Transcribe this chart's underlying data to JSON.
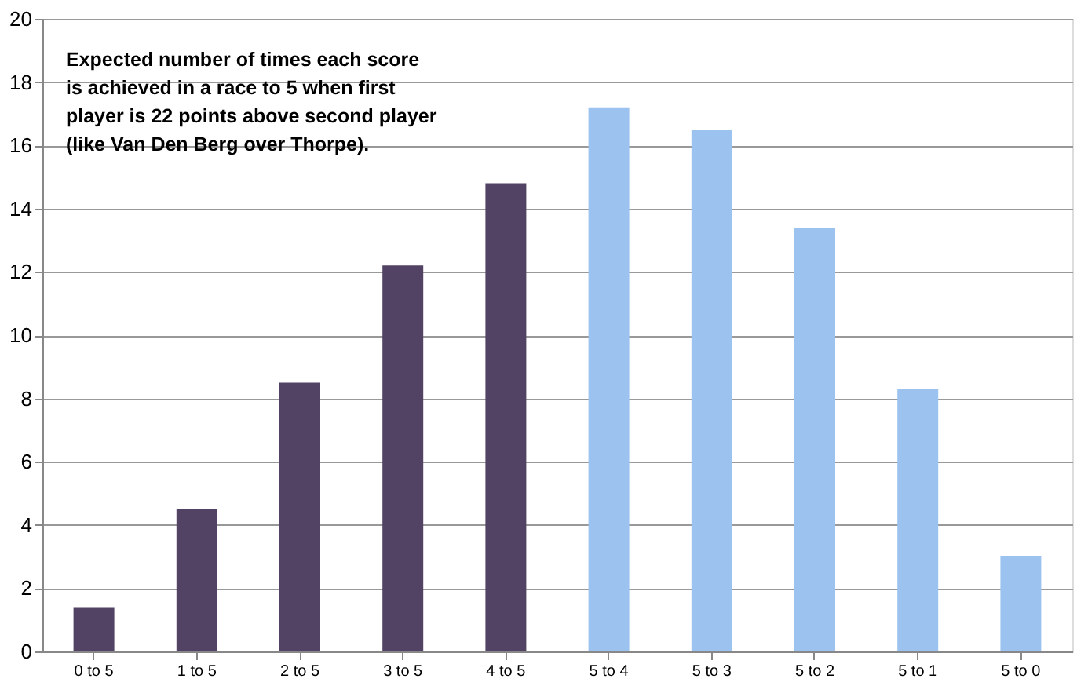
{
  "chart_data": {
    "type": "bar",
    "categories": [
      "0 to 5",
      "1 to 5",
      "2 to 5",
      "3 to 5",
      "4 to 5",
      "5 to 4",
      "5 to 3",
      "5 to 2",
      "5 to 1",
      "5 to 0"
    ],
    "values": [
      1.4,
      4.5,
      8.5,
      12.2,
      14.8,
      17.2,
      16.5,
      13.4,
      8.3,
      3.0
    ],
    "colors": [
      "#524263",
      "#524263",
      "#524263",
      "#524263",
      "#524263",
      "#9cc3ef",
      "#9cc3ef",
      "#9cc3ef",
      "#9cc3ef",
      "#9cc3ef"
    ],
    "ylim": [
      0,
      20
    ],
    "yticks": [
      0,
      2,
      4,
      6,
      8,
      10,
      12,
      14,
      16,
      18,
      20
    ],
    "grid": "y",
    "annotations": [
      "Expected number of times each score\nis achieved in a race to 5 when first\nplayer is 22 points above second player\n(like Van Den Berg over Thorpe)."
    ]
  }
}
